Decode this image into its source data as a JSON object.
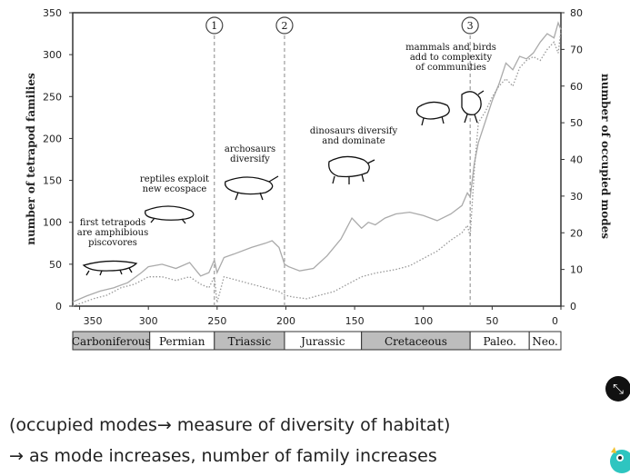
{
  "chart_data": {
    "type": "line",
    "xlabel": "",
    "ylabel_left": "number of tetrapod families",
    "ylabel_right": "number of occupied modes",
    "x_ticks": [
      "350",
      "300",
      "250",
      "200",
      "150",
      "100",
      "50",
      "0"
    ],
    "x_range": [
      355,
      0
    ],
    "y_left_ticks": [
      "350",
      "300",
      "250",
      "200",
      "150",
      "100",
      "50",
      "0"
    ],
    "y_left_range": [
      0,
      350
    ],
    "y_right_ticks": [
      "80",
      "70",
      "60",
      "50",
      "40",
      "30",
      "20",
      "10",
      "0"
    ],
    "y_right_range": [
      0,
      80
    ],
    "periods": [
      {
        "name": "Carboniferous",
        "start": 355,
        "end": 299,
        "shade": "#bdbdbd"
      },
      {
        "name": "Permian",
        "start": 299,
        "end": 252,
        "shade": "#ffffff"
      },
      {
        "name": "Triassic",
        "start": 252,
        "end": 201,
        "shade": "#bdbdbd"
      },
      {
        "name": "Jurassic",
        "start": 201,
        "end": 145,
        "shade": "#ffffff"
      },
      {
        "name": "Cretaceous",
        "start": 145,
        "end": 66,
        "shade": "#bdbdbd"
      },
      {
        "name": "Paleo.",
        "start": 66,
        "end": 23,
        "shade": "#ffffff"
      },
      {
        "name": "Neo.",
        "start": 23,
        "end": 0,
        "shade": "#ffffff"
      }
    ],
    "events": [
      {
        "label": "1",
        "x": 252
      },
      {
        "label": "2",
        "x": 201
      },
      {
        "label": "3",
        "x": 66
      }
    ],
    "series": [
      {
        "axis": "left",
        "style": "solid",
        "x": [
          355,
          345,
          335,
          325,
          315,
          305,
          300,
          290,
          280,
          270,
          262,
          256,
          252,
          250,
          245,
          238,
          225,
          215,
          210,
          205,
          201,
          198,
          190,
          180,
          170,
          160,
          152,
          145,
          140,
          135,
          128,
          120,
          110,
          100,
          90,
          80,
          72,
          68,
          66,
          63,
          60,
          55,
          50,
          45,
          40,
          35,
          30,
          25,
          20,
          15,
          10,
          5,
          2,
          0
        ],
        "y": [
          5,
          12,
          18,
          22,
          28,
          40,
          47,
          50,
          45,
          52,
          36,
          40,
          55,
          40,
          58,
          62,
          70,
          75,
          78,
          70,
          50,
          47,
          42,
          45,
          60,
          80,
          105,
          93,
          100,
          97,
          105,
          110,
          112,
          108,
          102,
          110,
          120,
          135,
          130,
          170,
          195,
          220,
          245,
          265,
          290,
          282,
          298,
          295,
          302,
          315,
          325,
          320,
          338,
          330
        ]
      },
      {
        "axis": "right",
        "style": "dotted",
        "x": [
          355,
          340,
          330,
          320,
          310,
          300,
          290,
          280,
          270,
          262,
          256,
          252,
          250,
          245,
          235,
          225,
          215,
          205,
          201,
          195,
          185,
          175,
          165,
          155,
          145,
          135,
          120,
          110,
          100,
          90,
          80,
          72,
          68,
          66,
          63,
          60,
          55,
          50,
          45,
          40,
          35,
          30,
          25,
          20,
          15,
          10,
          5,
          2,
          0
        ],
        "y": [
          0,
          2,
          3,
          5,
          6,
          8,
          8,
          7,
          8,
          6,
          5,
          8,
          1,
          8,
          7,
          6,
          5,
          4,
          3,
          2.5,
          2,
          3,
          4,
          6,
          8,
          9,
          10,
          11,
          13,
          15,
          18,
          20,
          22,
          19,
          37,
          50,
          53,
          57,
          60,
          62,
          60,
          65,
          67,
          68,
          67,
          70,
          72,
          69,
          75
        ]
      }
    ],
    "annotations": [
      {
        "text": "first tetrapods\nare amphibious\npiscovores"
      },
      {
        "text": "reptiles exploit\nnew ecospace"
      },
      {
        "text": "archosaurs\ndiversify"
      },
      {
        "text": "dinosaurs diversify\nand dominate"
      },
      {
        "text": "mammals and birds\nadd to complexity\nof communities"
      }
    ]
  },
  "caption": {
    "line1": "(occupied modes→ measure of diversity of habitat)",
    "line2": "→ as mode increases, number of family increases"
  },
  "ui": {
    "expand_icon": "⤡"
  }
}
